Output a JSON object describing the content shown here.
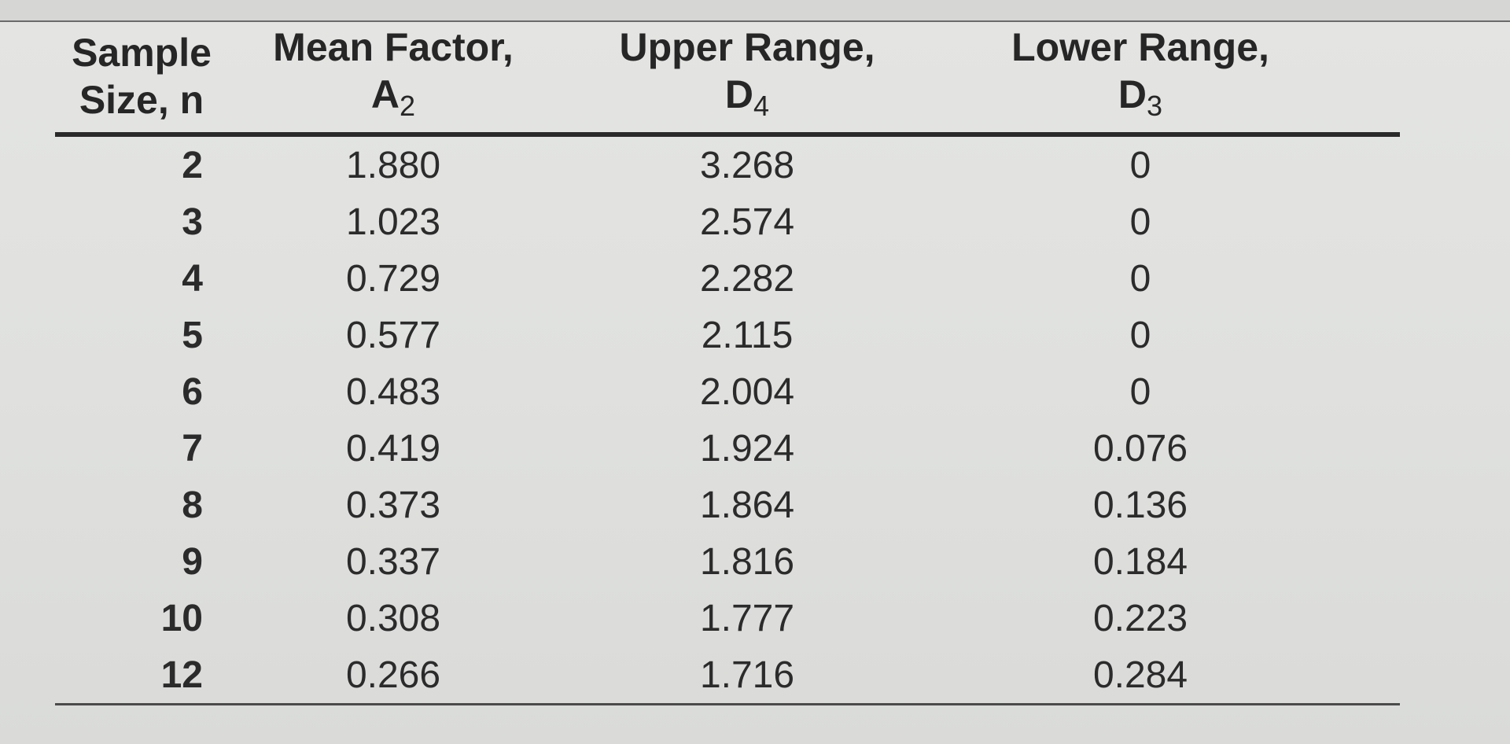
{
  "table": {
    "headers": {
      "sample_size": {
        "line1": "Sample",
        "line2": "Size, n"
      },
      "mean_factor": {
        "line1": "Mean Factor,",
        "symbol": "A",
        "subscript": "2"
      },
      "upper_range": {
        "line1": "Upper Range,",
        "symbol": "D",
        "subscript": "4"
      },
      "lower_range": {
        "line1": "Lower Range,",
        "symbol": "D",
        "subscript": "3"
      }
    },
    "rows": [
      {
        "n": "2",
        "a2": "1.880",
        "d4": "3.268",
        "d3": "0"
      },
      {
        "n": "3",
        "a2": "1.023",
        "d4": "2.574",
        "d3": "0"
      },
      {
        "n": "4",
        "a2": "0.729",
        "d4": "2.282",
        "d3": "0"
      },
      {
        "n": "5",
        "a2": "0.577",
        "d4": "2.115",
        "d3": "0"
      },
      {
        "n": "6",
        "a2": "0.483",
        "d4": "2.004",
        "d3": "0"
      },
      {
        "n": "7",
        "a2": "0.419",
        "d4": "1.924",
        "d3": "0.076"
      },
      {
        "n": "8",
        "a2": "0.373",
        "d4": "1.864",
        "d3": "0.136"
      },
      {
        "n": "9",
        "a2": "0.337",
        "d4": "1.816",
        "d3": "0.184"
      },
      {
        "n": "10",
        "a2": "0.308",
        "d4": "1.777",
        "d3": "0.223"
      },
      {
        "n": "12",
        "a2": "0.266",
        "d4": "1.716",
        "d3": "0.284"
      }
    ]
  }
}
